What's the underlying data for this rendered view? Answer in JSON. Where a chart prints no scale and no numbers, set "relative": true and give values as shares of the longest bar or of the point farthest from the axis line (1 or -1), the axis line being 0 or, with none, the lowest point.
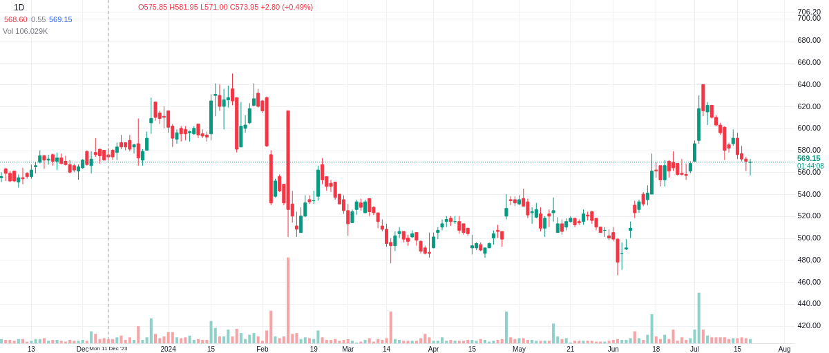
{
  "chart_data": [
    {
      "type": "candlestick",
      "title": "1D",
      "categories": [
        null,
        null,
        null,
        null,
        null,
        null,
        null,
        "13",
        null,
        null,
        null,
        null,
        null,
        null,
        null,
        null,
        null,
        null,
        null,
        "Dec",
        null,
        null,
        null,
        null,
        null,
        "Mon 11 Dec '23",
        null,
        null,
        null,
        null,
        null,
        null,
        null,
        null,
        null,
        null,
        null,
        null,
        null,
        "2024",
        null,
        null,
        null,
        null,
        null,
        null,
        null,
        null,
        null,
        "15",
        null,
        null,
        null,
        null,
        null,
        null,
        null,
        null,
        null,
        null,
        null,
        "Feb",
        null,
        null,
        null,
        null,
        null,
        null,
        null,
        null,
        null,
        null,
        null,
        "19",
        null,
        null,
        null,
        null,
        null,
        null,
        null,
        "Mar",
        null,
        null,
        null,
        null,
        null,
        null,
        null,
        null,
        "14",
        null,
        null,
        null,
        null,
        null,
        null,
        null,
        null,
        null,
        null,
        "Apr",
        null,
        null,
        null,
        null,
        null,
        null,
        null,
        null,
        "15",
        null,
        null,
        null,
        null,
        null,
        null,
        null,
        null,
        null,
        null,
        "May",
        null,
        null,
        null,
        null,
        null,
        null,
        null,
        null,
        null,
        null,
        null,
        "21",
        null,
        null,
        null,
        null,
        null,
        null,
        null,
        null,
        null,
        "Jun",
        null,
        null,
        null,
        null,
        null,
        null,
        null,
        null,
        null,
        "18",
        null,
        null,
        null,
        null,
        null,
        null,
        null,
        null,
        "Jul",
        null,
        null,
        null,
        null,
        null,
        null,
        null,
        null,
        null,
        "15",
        null,
        null,
        null,
        null,
        null,
        null,
        null,
        null,
        null,
        null,
        "Aug",
        null,
        null
      ],
      "ohlc": [
        [
          555,
          560,
          551,
          556
        ],
        [
          563,
          564,
          552,
          559
        ],
        [
          559,
          561,
          551,
          552
        ],
        [
          561,
          561,
          551,
          552
        ],
        [
          551,
          558,
          546,
          555
        ],
        [
          555,
          564,
          549,
          554
        ],
        [
          559,
          560,
          554,
          556
        ],
        [
          556,
          567,
          554,
          562
        ],
        [
          565,
          569,
          559,
          566
        ],
        [
          569,
          580,
          568,
          575
        ],
        [
          575,
          576,
          563,
          571
        ],
        [
          571,
          576,
          567,
          572
        ],
        [
          576,
          577,
          566,
          570
        ],
        [
          570,
          578,
          562,
          573
        ],
        [
          573,
          577,
          567,
          568
        ],
        [
          570,
          575,
          566,
          567
        ],
        [
          567,
          571,
          559,
          560
        ],
        [
          566,
          568,
          560,
          562
        ],
        [
          561,
          567,
          553,
          565
        ],
        [
          564,
          572,
          563,
          571
        ],
        [
          579,
          580,
          566,
          567
        ],
        [
          566,
          579,
          559,
          572
        ],
        [
          578,
          591,
          574,
          576
        ],
        [
          581,
          581,
          568,
          575
        ],
        [
          580,
          580,
          571,
          571
        ],
        [
          575.85,
          581.95,
          571.0,
          573.95
        ],
        [
          580,
          581,
          571,
          574
        ],
        [
          578,
          587,
          571,
          583
        ],
        [
          587,
          594,
          581,
          583
        ],
        [
          587,
          587,
          580,
          583
        ],
        [
          589,
          594,
          579,
          581
        ],
        [
          583,
          586,
          577,
          585
        ],
        [
          586,
          609,
          566,
          573
        ],
        [
          571,
          581,
          566,
          579
        ],
        [
          580,
          597,
          580,
          591
        ],
        [
          605,
          628,
          595,
          609
        ],
        [
          624,
          624,
          607,
          610
        ],
        [
          614,
          616,
          604,
          609
        ],
        [
          611,
          620,
          600,
          610
        ],
        [
          616,
          616,
          596,
          601
        ],
        [
          602,
          604,
          583,
          591
        ],
        [
          590,
          599,
          586,
          596
        ],
        [
          600,
          602,
          588,
          595
        ],
        [
          599,
          602,
          589,
          595
        ],
        [
          596,
          598,
          588,
          597
        ],
        [
          595,
          602,
          594,
          600
        ],
        [
          604,
          604,
          591,
          594
        ],
        [
          595,
          599,
          591,
          593
        ],
        [
          594,
          597,
          588,
          592
        ],
        [
          595,
          631,
          589,
          625
        ],
        [
          630,
          641,
          611,
          631
        ],
        [
          630,
          640,
          616,
          620
        ],
        [
          620,
          636,
          599,
          626
        ],
        [
          626,
          639,
          619,
          628
        ],
        [
          636,
          650,
          621,
          625
        ],
        [
          628,
          628,
          578,
          581
        ],
        [
          583,
          624,
          583,
          602
        ],
        [
          600,
          612,
          596,
          603
        ],
        [
          605,
          623,
          604,
          618
        ],
        [
          621,
          641,
          620,
          627
        ],
        [
          632,
          636,
          619,
          620
        ],
        [
          625,
          626,
          614,
          616
        ],
        [
          628,
          629,
          583,
          584
        ],
        [
          576,
          580,
          530,
          532
        ],
        [
          538,
          554,
          537,
          552
        ],
        [
          556,
          558,
          542,
          543
        ],
        [
          549,
          549,
          530,
          532
        ],
        [
          616,
          616,
          501,
          526
        ],
        [
          531,
          543,
          514,
          520
        ],
        [
          511,
          524,
          501,
          508
        ],
        [
          505,
          528,
          505,
          520
        ],
        [
          520,
          539,
          519,
          532
        ],
        [
          535,
          539,
          531,
          533
        ],
        [
          534,
          543,
          531,
          534
        ],
        [
          538,
          566,
          534,
          562
        ],
        [
          567,
          573,
          549,
          553
        ],
        [
          556,
          556,
          543,
          547
        ],
        [
          550,
          553,
          542,
          547
        ],
        [
          551,
          551,
          535,
          537
        ],
        [
          540,
          540,
          531,
          531
        ],
        [
          535,
          539,
          522,
          525
        ],
        [
          525,
          531,
          502,
          513
        ],
        [
          514,
          526,
          514,
          524
        ],
        [
          526,
          535,
          521,
          533
        ],
        [
          532,
          536,
          525,
          528
        ],
        [
          523,
          535,
          523,
          533
        ],
        [
          536,
          536,
          520,
          524
        ],
        [
          528,
          529,
          521,
          523
        ],
        [
          523,
          523,
          509,
          515
        ],
        [
          511,
          517,
          506,
          508
        ],
        [
          508,
          513,
          492,
          495
        ],
        [
          496,
          500,
          477,
          493
        ],
        [
          493,
          506,
          488,
          502
        ],
        [
          504,
          510,
          500,
          506
        ],
        [
          506,
          506,
          496,
          499
        ],
        [
          500,
          503,
          493,
          497
        ],
        [
          501,
          507,
          500,
          504
        ],
        [
          505,
          505,
          493,
          498
        ],
        [
          497,
          498,
          486,
          488
        ],
        [
          491,
          493,
          485,
          486
        ],
        [
          487,
          505,
          482,
          486
        ],
        [
          491,
          505,
          491,
          501
        ],
        [
          505,
          510,
          499,
          507
        ],
        [
          510,
          517,
          507,
          513
        ],
        [
          515,
          520,
          510,
          517
        ],
        [
          518,
          520,
          511,
          515
        ],
        [
          515,
          520,
          513,
          515
        ],
        [
          515,
          520,
          504,
          507
        ],
        [
          513,
          513,
          503,
          505
        ],
        [
          509,
          509,
          502,
          504
        ],
        [
          491,
          503,
          485,
          493
        ],
        [
          491,
          496,
          489,
          495
        ],
        [
          494,
          496,
          488,
          489
        ],
        [
          486,
          491,
          482,
          491
        ],
        [
          491,
          496,
          491,
          495
        ],
        [
          500,
          507,
          494,
          504
        ],
        [
          507,
          512,
          500,
          506
        ],
        [
          506,
          506,
          492,
          499
        ],
        [
          520,
          540,
          517,
          527
        ],
        [
          535,
          538,
          530,
          534
        ],
        [
          535,
          538,
          529,
          532
        ],
        [
          531,
          539,
          530,
          535
        ],
        [
          536,
          545,
          529,
          529
        ],
        [
          533,
          536,
          518,
          521
        ],
        [
          523,
          528,
          513,
          524
        ],
        [
          519,
          532,
          518,
          526
        ],
        [
          522,
          528,
          506,
          509
        ],
        [
          509,
          520,
          501,
          518
        ],
        [
          522,
          526,
          510,
          520
        ],
        [
          523,
          537,
          515,
          525
        ],
        [
          505,
          519,
          505,
          513
        ],
        [
          513,
          517,
          503,
          506
        ],
        [
          510,
          518,
          507,
          515
        ],
        [
          515,
          520,
          514,
          518
        ],
        [
          518,
          518,
          510,
          512
        ],
        [
          515,
          517,
          512,
          514
        ],
        [
          515,
          526,
          512,
          522
        ],
        [
          521,
          524,
          516,
          520
        ],
        [
          524,
          525,
          513,
          516
        ],
        [
          518,
          518,
          507,
          510
        ],
        [
          510,
          510,
          505,
          505
        ],
        [
          507,
          510,
          501,
          507
        ],
        [
          502,
          508,
          498,
          500
        ],
        [
          505,
          510,
          497,
          499
        ],
        [
          499,
          500,
          466,
          478
        ],
        [
          486,
          496,
          471,
          486
        ],
        [
          490,
          499,
          489,
          491
        ],
        [
          507,
          515,
          500,
          509
        ],
        [
          530,
          534,
          518,
          523
        ],
        [
          526,
          535,
          523,
          533
        ],
        [
          540,
          542,
          529,
          531
        ],
        [
          535,
          548,
          530,
          541
        ],
        [
          540,
          577,
          540,
          561
        ],
        [
          562,
          569,
          555,
          561
        ],
        [
          566,
          566,
          547,
          553
        ],
        [
          553,
          571,
          547,
          566
        ],
        [
          570,
          571,
          555,
          561
        ],
        [
          569,
          579,
          561,
          564
        ],
        [
          568,
          568,
          557,
          558
        ],
        [
          559,
          572,
          557,
          558
        ],
        [
          558,
          568,
          553,
          557
        ],
        [
          561,
          570,
          559,
          568
        ],
        [
          570,
          589,
          570,
          586
        ],
        [
          589,
          630,
          586,
          618
        ],
        [
          640,
          640,
          611,
          616
        ],
        [
          615,
          624,
          603,
          621
        ],
        [
          621,
          621,
          609,
          610
        ],
        [
          610,
          612,
          602,
          603
        ],
        [
          603,
          605,
          594,
          596
        ],
        [
          601,
          602,
          571,
          580
        ],
        [
          585,
          587,
          578,
          582
        ],
        [
          586,
          599,
          584,
          591
        ],
        [
          591,
          596,
          572,
          576
        ],
        [
          577,
          584,
          570,
          572
        ],
        [
          572,
          574,
          561,
          570
        ],
        [
          569,
          572,
          557,
          569.15
        ],
        null,
        null,
        null,
        null,
        null,
        null,
        null,
        null,
        null,
        null
      ],
      "colors": [
        "#089981",
        "#f23645",
        "#f23645",
        "#f23645",
        "#089981",
        "#f23645",
        "#f23645",
        "#089981",
        "#089981",
        "#089981",
        "#f23645",
        "#089981",
        "#f23645",
        "#089981",
        "#f23645",
        "#f23645",
        "#f23645",
        "#f23645",
        "#089981",
        "#089981",
        "#f23645",
        "#089981",
        "#f23645",
        "#f23645",
        "#f23645",
        "#f23645",
        "#f23645",
        "#089981",
        "#f23645",
        "#f23645",
        "#f23645",
        "#089981",
        "#f23645",
        "#089981",
        "#089981",
        "#089981",
        "#f23645",
        "#f23645",
        "#f23645",
        "#f23645",
        "#f23645",
        "#089981",
        "#f23645",
        "#f23645",
        "#089981",
        "#089981",
        "#f23645",
        "#f23645",
        "#f23645",
        "#089981",
        "#089981",
        "#f23645",
        "#089981",
        "#089981",
        "#f23645",
        "#f23645",
        "#089981",
        "#089981",
        "#089981",
        "#089981",
        "#f23645",
        "#f23645",
        "#f23645",
        "#f23645",
        "#089981",
        "#f23645",
        "#f23645",
        "#f23645",
        "#f23645",
        "#f23645",
        "#089981",
        "#089981",
        "#f23645",
        "#089981",
        "#089981",
        "#f23645",
        "#f23645",
        "#f23645",
        "#f23645",
        "#f23645",
        "#f23645",
        "#f23645",
        "#089981",
        "#089981",
        "#f23645",
        "#089981",
        "#f23645",
        "#f23645",
        "#f23645",
        "#f23645",
        "#f23645",
        "#f23645",
        "#089981",
        "#089981",
        "#f23645",
        "#f23645",
        "#089981",
        "#f23645",
        "#f23645",
        "#f23645",
        "#f23645",
        "#089981",
        "#089981",
        "#089981",
        "#089981",
        "#f23645",
        "#089981",
        "#f23645",
        "#f23645",
        "#f23645",
        "#089981",
        "#089981",
        "#f23645",
        "#089981",
        "#089981",
        "#089981",
        "#f23645",
        "#f23645",
        "#089981",
        "#f23645",
        "#f23645",
        "#089981",
        "#f23645",
        "#f23645",
        "#089981",
        "#089981",
        "#f23645",
        "#089981",
        "#f23645",
        "#089981",
        "#089981",
        "#f23645",
        "#089981",
        "#089981",
        "#f23645",
        "#f23645",
        "#089981",
        "#f23645",
        "#f23645",
        "#f23645",
        "#f23645",
        "#089981",
        "#f23645",
        "#f23645",
        "#f23645",
        "#089981",
        "#089981",
        "#089981",
        "#f23645",
        "#089981",
        "#f23645",
        "#089981",
        "#089981",
        "#f23645",
        "#f23645",
        "#089981",
        "#f23645",
        "#f23645",
        "#f23645",
        "#f23645",
        "#f23645",
        "#089981",
        "#089981",
        "#089981",
        "#f23645",
        "#089981",
        "#f23645",
        "#f23645",
        "#f23645",
        "#f23645",
        "#f23645",
        "#089981",
        "#f23645",
        "#f23645",
        "#f23645",
        "#089981",
        null,
        null,
        null,
        null,
        null,
        null,
        null,
        null,
        null,
        null
      ],
      "ylim": [
        404,
        717
      ],
      "yticks": [
        {
          "value": 420,
          "label": "420.00"
        },
        {
          "value": 440,
          "label": "440.00"
        },
        {
          "value": 460,
          "label": "460.00"
        },
        {
          "value": 480,
          "label": "480.00"
        },
        {
          "value": 500,
          "label": "500.00"
        },
        {
          "value": 520,
          "label": "520.00"
        },
        {
          "value": 540,
          "label": "540.00"
        },
        {
          "value": 560,
          "label": "560.00"
        },
        {
          "value": 580,
          "label": "580.00"
        },
        {
          "value": 600,
          "label": "600.00"
        },
        {
          "value": 620,
          "label": "620.00"
        },
        {
          "value": 640,
          "label": "640.00"
        },
        {
          "value": 660,
          "label": "660.00"
        },
        {
          "value": 680,
          "label": "680.00"
        },
        {
          "value": 700,
          "label": "700.00"
        },
        {
          "value": 706.2,
          "label": "706.20"
        }
      ],
      "grid": true,
      "ref_lines": [
        {
          "axis": "y",
          "value": 569.15,
          "label": "569.15",
          "color": "#089981",
          "line_style": "dotted"
        },
        {
          "axis": "x",
          "value": "Mon 11 Dec '23",
          "color": "#9598a1",
          "line_style": "dashed"
        }
      ],
      "annotations": [
        "O575.85 H581.95 L571.00 C573.95 +2.80 (+0.49%)",
        "568.60",
        "0.55",
        "569.15",
        "Vol 106.029K",
        "01:44:08"
      ]
    },
    {
      "type": "bar",
      "relative": true,
      "tick_labels": false,
      "categories": [
        null,
        null,
        null,
        null,
        null,
        null,
        null,
        "13",
        null,
        null,
        null,
        null,
        null,
        null,
        null,
        null,
        null,
        null,
        null,
        "Dec",
        null,
        null,
        null,
        null,
        null,
        "Mon 11 Dec '23",
        null,
        null,
        null,
        null,
        null,
        null,
        null,
        null,
        null,
        null,
        null,
        null,
        null,
        "2024",
        null,
        null,
        null,
        null,
        null,
        null,
        null,
        null,
        null,
        "15",
        null,
        null,
        null,
        null,
        null,
        null,
        null,
        null,
        null,
        null,
        null,
        "Feb",
        null,
        null,
        null,
        null,
        null,
        null,
        null,
        null,
        null,
        null,
        null,
        "19",
        null,
        null,
        null,
        null,
        null,
        null,
        null,
        "Mar",
        null,
        null,
        null,
        null,
        null,
        null,
        null,
        null,
        "14",
        null,
        null,
        null,
        null,
        null,
        null,
        null,
        null,
        null,
        null,
        "Apr",
        null,
        null,
        null,
        null,
        null,
        null,
        null,
        null,
        "15",
        null,
        null,
        null,
        null,
        null,
        null,
        null,
        null,
        null,
        null,
        "May",
        null,
        null,
        null,
        null,
        null,
        null,
        null,
        null,
        null,
        null,
        null,
        "21",
        null,
        null,
        null,
        null,
        null,
        null,
        null,
        null,
        null,
        "Jun",
        null,
        null,
        null,
        null,
        null,
        null,
        null,
        null,
        null,
        "18",
        null,
        null,
        null,
        null,
        null,
        null,
        null,
        null,
        "Jul",
        null,
        null,
        null,
        null,
        null,
        null,
        null,
        null,
        null,
        "15",
        null,
        null,
        null,
        null,
        null,
        null,
        null,
        null,
        null,
        null,
        "Aug",
        null,
        null
      ],
      "values": [
        0.05,
        0.04,
        0.04,
        0.03,
        0.05,
        0.05,
        0.02,
        0.03,
        0.05,
        0.05,
        0.06,
        0.03,
        0.04,
        0.04,
        0.03,
        0.02,
        0.04,
        0.03,
        0.03,
        0.04,
        0.03,
        0.14,
        0.11,
        0.05,
        0.06,
        0.05,
        0.05,
        0.07,
        0.09,
        0.04,
        0.07,
        0.04,
        0.2,
        0.04,
        0.07,
        0.29,
        0.11,
        0.06,
        0.08,
        0.13,
        0.13,
        0.07,
        0.06,
        0.07,
        0.09,
        0.04,
        0.05,
        0.04,
        0.04,
        0.26,
        0.18,
        0.08,
        0.08,
        0.16,
        0.08,
        0.17,
        0.12,
        0.05,
        0.1,
        0.12,
        0.08,
        0.03,
        0.15,
        0.38,
        0.08,
        0.06,
        0.08,
        1,
        0.11,
        0.12,
        0.05,
        0.07,
        0.06,
        0.05,
        0.15,
        0.07,
        0.04,
        0.04,
        0.05,
        0.03,
        0.04,
        0.05,
        0.03,
        0.01,
        0.02,
        0.04,
        0.06,
        0.02,
        0.05,
        0.04,
        0.06,
        0.37,
        0.05,
        0.04,
        0.03,
        0.03,
        0.03,
        0.03,
        0.06,
        0.11,
        0.07,
        0.03,
        0.03,
        0.07,
        0.03,
        0.04,
        0.03,
        0.03,
        0.03,
        0.04,
        0.04,
        0.03,
        0.05,
        0.04,
        0.02,
        0.03,
        0.04,
        0.05,
        0.37,
        0.07,
        0.05,
        0.06,
        0.06,
        0.04,
        0.04,
        0.03,
        0.03,
        0.03,
        0.03,
        0.23,
        0.08,
        0.05,
        0.06,
        0.01,
        0.03,
        0.03,
        0.03,
        0.03,
        0.03,
        0.02,
        0.02,
        0.02,
        0.03,
        0.04,
        0.05,
        0.04,
        0.04,
        0.06,
        0.14,
        0.06,
        0.04,
        0.1,
        0.34,
        0.08,
        0.05,
        0.1,
        0.05,
        0.16,
        0.03,
        0.07,
        0.04,
        0.06,
        0.16,
        0.59,
        0.16,
        0.09,
        0.07,
        0.07,
        0.07,
        0.07,
        0.05,
        0.06,
        0.06,
        0.07,
        0.06,
        0.05,
        null,
        null,
        null,
        null,
        null,
        null,
        null,
        null,
        null,
        null
      ],
      "colors": [
        "#8fd1c8",
        "#f7a4a7",
        "#f7a4a7",
        "#f7a4a7",
        "#8fd1c8",
        "#f7a4a7",
        "#f7a4a7",
        "#8fd1c8",
        "#8fd1c8",
        "#8fd1c8",
        "#f7a4a7",
        "#8fd1c8",
        "#f7a4a7",
        "#8fd1c8",
        "#f7a4a7",
        "#f7a4a7",
        "#f7a4a7",
        "#f7a4a7",
        "#8fd1c8",
        "#8fd1c8",
        "#f7a4a7",
        "#8fd1c8",
        "#f7a4a7",
        "#f7a4a7",
        "#f7a4a7",
        "#f7a4a7",
        "#f7a4a7",
        "#8fd1c8",
        "#f7a4a7",
        "#f7a4a7",
        "#f7a4a7",
        "#8fd1c8",
        "#f7a4a7",
        "#8fd1c8",
        "#8fd1c8",
        "#8fd1c8",
        "#f7a4a7",
        "#f7a4a7",
        "#f7a4a7",
        "#f7a4a7",
        "#f7a4a7",
        "#8fd1c8",
        "#f7a4a7",
        "#f7a4a7",
        "#8fd1c8",
        "#8fd1c8",
        "#f7a4a7",
        "#f7a4a7",
        "#f7a4a7",
        "#8fd1c8",
        "#8fd1c8",
        "#f7a4a7",
        "#8fd1c8",
        "#8fd1c8",
        "#f7a4a7",
        "#f7a4a7",
        "#8fd1c8",
        "#8fd1c8",
        "#8fd1c8",
        "#8fd1c8",
        "#f7a4a7",
        "#f7a4a7",
        "#f7a4a7",
        "#f7a4a7",
        "#8fd1c8",
        "#f7a4a7",
        "#f7a4a7",
        "#f7a4a7",
        "#f7a4a7",
        "#f7a4a7",
        "#8fd1c8",
        "#8fd1c8",
        "#f7a4a7",
        "#8fd1c8",
        "#8fd1c8",
        "#f7a4a7",
        "#f7a4a7",
        "#f7a4a7",
        "#f7a4a7",
        "#f7a4a7",
        "#f7a4a7",
        "#f7a4a7",
        "#8fd1c8",
        "#8fd1c8",
        "#f7a4a7",
        "#8fd1c8",
        "#f7a4a7",
        "#f7a4a7",
        "#f7a4a7",
        "#f7a4a7",
        "#f7a4a7",
        "#f7a4a7",
        "#8fd1c8",
        "#8fd1c8",
        "#f7a4a7",
        "#f7a4a7",
        "#8fd1c8",
        "#f7a4a7",
        "#f7a4a7",
        "#f7a4a7",
        "#f7a4a7",
        "#8fd1c8",
        "#8fd1c8",
        "#8fd1c8",
        "#8fd1c8",
        "#f7a4a7",
        "#8fd1c8",
        "#f7a4a7",
        "#f7a4a7",
        "#f7a4a7",
        "#8fd1c8",
        "#8fd1c8",
        "#f7a4a7",
        "#8fd1c8",
        "#8fd1c8",
        "#8fd1c8",
        "#f7a4a7",
        "#f7a4a7",
        "#8fd1c8",
        "#f7a4a7",
        "#f7a4a7",
        "#8fd1c8",
        "#f7a4a7",
        "#f7a4a7",
        "#8fd1c8",
        "#8fd1c8",
        "#f7a4a7",
        "#8fd1c8",
        "#f7a4a7",
        "#8fd1c8",
        "#8fd1c8",
        "#f7a4a7",
        "#8fd1c8",
        "#8fd1c8",
        "#f7a4a7",
        "#f7a4a7",
        "#8fd1c8",
        "#f7a4a7",
        "#f7a4a7",
        "#f7a4a7",
        "#f7a4a7",
        "#8fd1c8",
        "#f7a4a7",
        "#f7a4a7",
        "#f7a4a7",
        "#8fd1c8",
        "#8fd1c8",
        "#8fd1c8",
        "#f7a4a7",
        "#8fd1c8",
        "#f7a4a7",
        "#8fd1c8",
        "#8fd1c8",
        "#f7a4a7",
        "#f7a4a7",
        "#8fd1c8",
        "#f7a4a7",
        "#f7a4a7",
        "#f7a4a7",
        "#f7a4a7",
        "#f7a4a7",
        "#8fd1c8",
        "#8fd1c8",
        "#8fd1c8",
        "#f7a4a7",
        "#8fd1c8",
        "#f7a4a7",
        "#f7a4a7",
        "#f7a4a7",
        "#f7a4a7",
        "#f7a4a7",
        "#8fd1c8",
        "#f7a4a7",
        "#f7a4a7",
        "#f7a4a7",
        "#8fd1c8",
        null,
        null,
        null,
        null,
        null,
        null,
        null,
        null,
        null,
        null
      ]
    }
  ]
}
